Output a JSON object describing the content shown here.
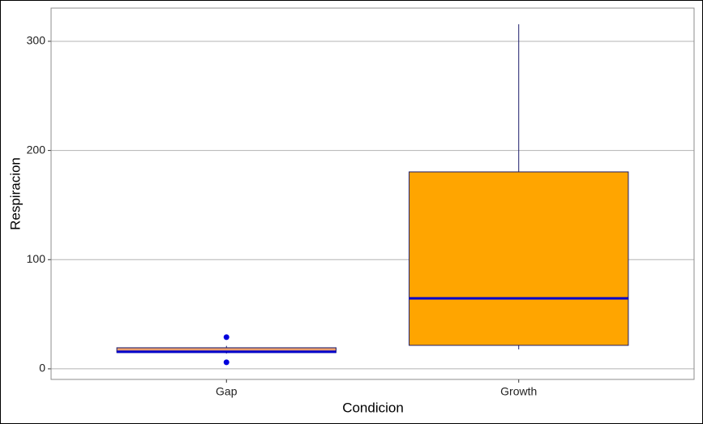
{
  "chart_data": {
    "type": "box",
    "x_label": "Condicion",
    "y_label": "Respiracion",
    "categories": [
      "Gap",
      "Growth"
    ],
    "boxes": [
      {
        "whislo": 14,
        "q1": 14.9,
        "med": 15.6,
        "q3": 19.3,
        "whishi": 21,
        "fliers": [
          29,
          6
        ]
      },
      {
        "whislo": 17.8,
        "q1": 21.5,
        "med": 64.6,
        "q3": 180.4,
        "whishi": 315.6,
        "fliers": []
      }
    ],
    "colors": [
      "#ec9f6c",
      "#ffa500"
    ],
    "edge_color": "#1c1c6b",
    "median_color": "#0000cc",
    "flier_color": "#0000dd",
    "ylim": [
      -9.7,
      330.4
    ],
    "yticks": [
      0,
      100,
      200,
      300
    ],
    "grid": true
  }
}
